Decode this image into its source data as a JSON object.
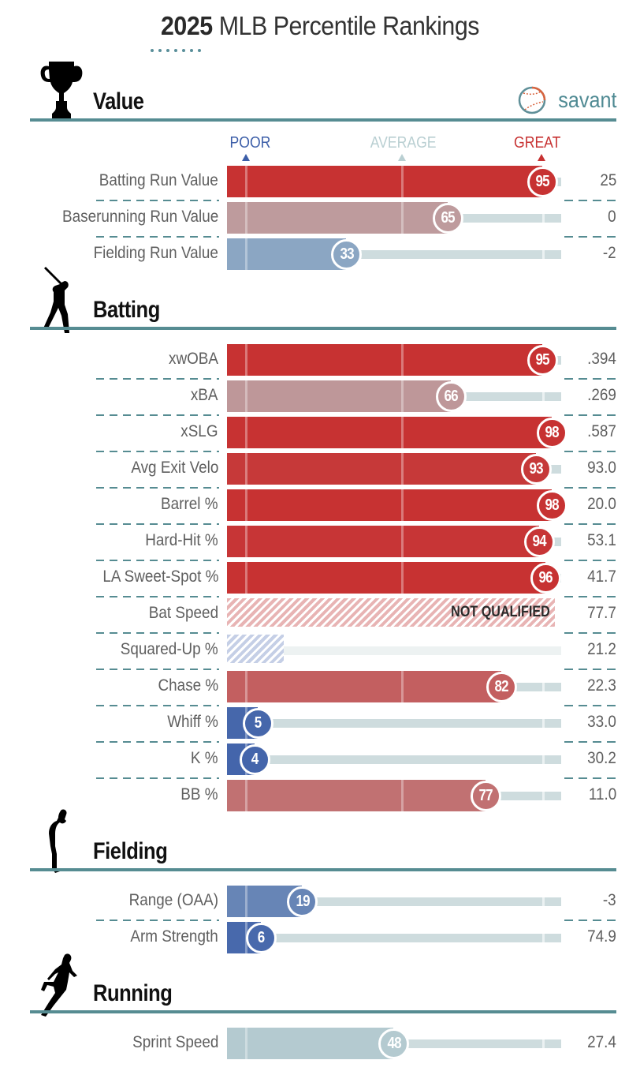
{
  "header": {
    "year": "2025",
    "title": "MLB Percentile Rankings",
    "logo_text": "savant"
  },
  "legend": {
    "poor": "POOR",
    "average": "AVERAGE",
    "great": "GREAT",
    "colors": {
      "poor": "#3c5ea8",
      "average": "#b9cfd2",
      "great": "#c73232"
    }
  },
  "chart_data": {
    "type": "bar",
    "title": "2025 MLB Percentile Rankings",
    "xlabel": "Percentile",
    "xlim": [
      0,
      100
    ],
    "scale_labels": [
      "POOR",
      "AVERAGE",
      "GREAT"
    ],
    "sections": [
      {
        "name": "Value",
        "icon": "trophy-icon",
        "metrics": [
          {
            "label": "Batting Run Value",
            "percentile": 95,
            "value": "25"
          },
          {
            "label": "Baserunning Run Value",
            "percentile": 65,
            "value": "0"
          },
          {
            "label": "Fielding Run Value",
            "percentile": 33,
            "value": "-2"
          }
        ]
      },
      {
        "name": "Batting",
        "icon": "batter-icon",
        "metrics": [
          {
            "label": "xwOBA",
            "percentile": 95,
            "value": ".394"
          },
          {
            "label": "xBA",
            "percentile": 66,
            "value": ".269"
          },
          {
            "label": "xSLG",
            "percentile": 98,
            "value": ".587"
          },
          {
            "label": "Avg Exit Velo",
            "percentile": 93,
            "value": "93.0"
          },
          {
            "label": "Barrel %",
            "percentile": 98,
            "value": "20.0"
          },
          {
            "label": "Hard-Hit %",
            "percentile": 94,
            "value": "53.1"
          },
          {
            "label": "LA Sweet-Spot %",
            "percentile": 96,
            "value": "41.7"
          },
          {
            "label": "Bat Speed",
            "percentile": null,
            "qualified": false,
            "status": "NOT QUALIFIED",
            "value": "77.7",
            "hatch": "red",
            "hatch_percent": 99
          },
          {
            "label": "Squared-Up %",
            "percentile": null,
            "qualified": false,
            "status": "",
            "value": "21.2",
            "hatch": "blue",
            "hatch_percent": 17
          },
          {
            "label": "Chase %",
            "percentile": 82,
            "value": "22.3"
          },
          {
            "label": "Whiff %",
            "percentile": 5,
            "value": "33.0"
          },
          {
            "label": "K %",
            "percentile": 4,
            "value": "30.2"
          },
          {
            "label": "BB %",
            "percentile": 77,
            "value": "11.0"
          }
        ]
      },
      {
        "name": "Fielding",
        "icon": "fielder-icon",
        "metrics": [
          {
            "label": "Range (OAA)",
            "percentile": 19,
            "value": "-3"
          },
          {
            "label": "Arm Strength",
            "percentile": 6,
            "value": "74.9"
          }
        ]
      },
      {
        "name": "Running",
        "icon": "runner-icon",
        "metrics": [
          {
            "label": "Sprint Speed",
            "percentile": 48,
            "value": "27.4"
          }
        ]
      }
    ]
  }
}
